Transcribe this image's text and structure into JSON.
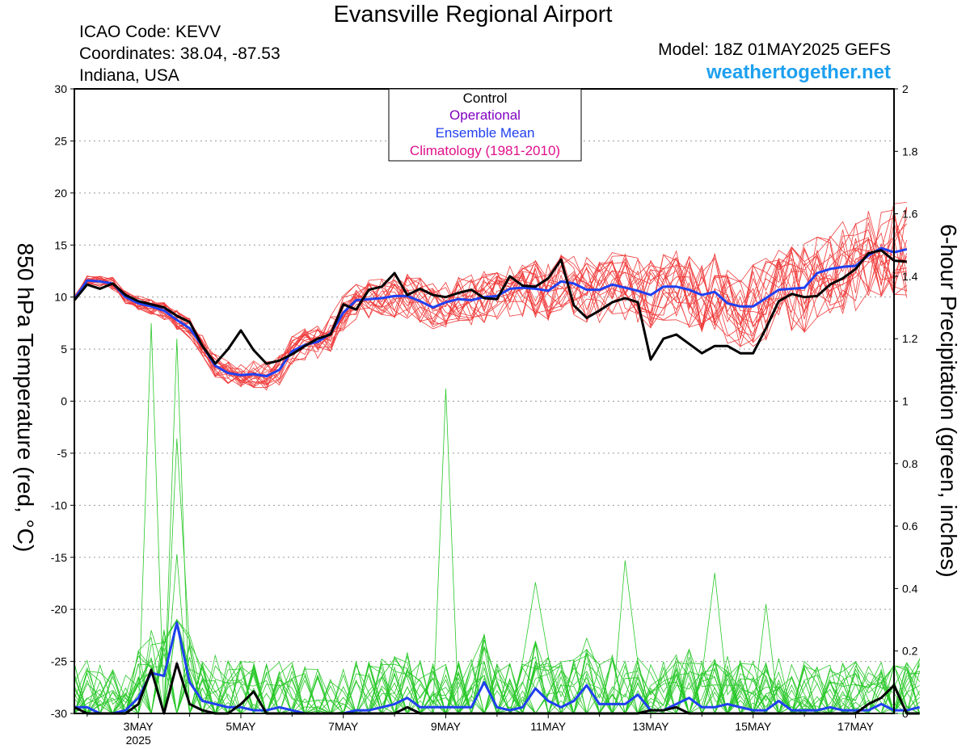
{
  "header": {
    "title": "Evansville Regional Airport",
    "icao": "ICAO Code: KEVV",
    "coords": "Coordinates: 38.04, -87.53",
    "region": "Indiana, USA",
    "model": "Model: 18Z 01MAY2025 GEFS",
    "site": "weathertogether.net"
  },
  "colors": {
    "control": "#000000",
    "operational": "#8000c0",
    "ensemble_mean": "#2040f0",
    "climatology": "#e0108a",
    "members_temp": "#f03c3c",
    "members_precip": "#28c828",
    "site": "#1ea0ef"
  },
  "chart_data": {
    "type": "line",
    "title": "Evansville Regional Airport",
    "ylabel": "850 hPa Temperature (red, °C)",
    "y2label": "6-hour Precipitation (green, inches)",
    "ylim": [
      -30,
      30
    ],
    "y2lim": [
      0,
      2
    ],
    "yticks": [
      30,
      25,
      20,
      15,
      10,
      5,
      0,
      -5,
      -10,
      -15,
      -20,
      -25,
      -30
    ],
    "y2ticks": [
      2,
      1.8,
      1.6,
      1.4,
      1.2,
      1,
      0.8,
      0.6,
      0.4,
      0.2,
      0
    ],
    "xlim": [
      1.75,
      17.75
    ],
    "xticks": [
      {
        "day": 3,
        "label": "3MAY",
        "sub": "2025"
      },
      {
        "day": 5,
        "label": "5MAY",
        "sub": ""
      },
      {
        "day": 7,
        "label": "7MAY",
        "sub": ""
      },
      {
        "day": 9,
        "label": "9MAY",
        "sub": ""
      },
      {
        "day": 11,
        "label": "11MAY",
        "sub": ""
      },
      {
        "day": 13,
        "label": "13MAY",
        "sub": ""
      },
      {
        "day": 15,
        "label": "15MAY",
        "sub": ""
      },
      {
        "day": 17,
        "label": "17MAY",
        "sub": ""
      }
    ],
    "grid": "dotted horizontal",
    "legend_position": "top-center",
    "legend": [
      {
        "label": "Control",
        "key": "control"
      },
      {
        "label": "Operational",
        "key": "operational"
      },
      {
        "label": "Ensemble Mean",
        "key": "ensemble_mean"
      },
      {
        "label": "Climatology (1981-2010)",
        "key": "climatology"
      }
    ],
    "x_start_day": 1.75,
    "x_step_days": 0.25,
    "temp_control": [
      9.7,
      11.2,
      10.8,
      11.3,
      10.2,
      9.6,
      9.3,
      9.0,
      8.2,
      7.6,
      5.3,
      3.6,
      5.0,
      6.8,
      4.9,
      3.6,
      3.9,
      4.5,
      5.3,
      6.0,
      6.4,
      9.3,
      8.8,
      10.7,
      11.0,
      12.3,
      10.2,
      10.8,
      10.2,
      10.0,
      10.4,
      10.7,
      9.9,
      9.8,
      12.0,
      11.1,
      11.0,
      11.8,
      13.6,
      9.2,
      8.0,
      8.7,
      9.5,
      9.9,
      9.5,
      4.0,
      6.0,
      6.4,
      5.5,
      4.6,
      5.3,
      5.3,
      4.6,
      4.6,
      7.0,
      9.6,
      10.3,
      10.0,
      10.1,
      11.2,
      11.8,
      12.7,
      14.2,
      14.5,
      13.5,
      13.4
    ],
    "temp_mean": [
      9.8,
      11.6,
      11.5,
      11.3,
      10.0,
      9.4,
      9.1,
      8.7,
      7.8,
      7.0,
      5.3,
      3.4,
      2.7,
      2.5,
      2.6,
      2.4,
      3.0,
      4.8,
      5.4,
      5.7,
      6.5,
      8.5,
      9.7,
      9.8,
      9.9,
      10.1,
      10.1,
      9.6,
      9.0,
      9.5,
      9.8,
      9.7,
      10.0,
      10.1,
      10.8,
      10.9,
      10.8,
      10.6,
      11.5,
      11.3,
      10.7,
      10.7,
      11.2,
      10.9,
      10.6,
      10.2,
      11.0,
      11.0,
      10.7,
      10.2,
      10.5,
      9.4,
      9.1,
      9.1,
      9.9,
      10.7,
      10.8,
      10.9,
      12.3,
      12.7,
      12.9,
      13.0,
      14.0,
      14.7,
      14.3,
      14.6
    ],
    "precip_control": [
      0.02,
      0,
      0,
      0,
      0,
      0.03,
      0.14,
      0,
      0.16,
      0.03,
      0.01,
      0,
      0,
      0.03,
      0.07,
      0,
      0,
      0,
      0,
      0,
      0,
      0,
      0,
      0,
      0,
      0,
      0.02,
      0,
      0,
      0,
      0,
      0,
      0,
      0,
      0,
      0,
      0,
      0,
      0,
      0,
      0,
      0,
      0,
      0,
      0,
      0.01,
      0.01,
      0.02,
      0,
      0,
      0,
      0,
      0,
      0,
      0,
      0,
      0,
      0,
      0,
      0,
      0,
      0,
      0.03,
      0.05,
      0.09,
      0,
      0
    ],
    "precip_mean": [
      0.02,
      0.02,
      0,
      0,
      0.01,
      0.05,
      0.13,
      0.12,
      0.29,
      0.1,
      0.04,
      0.03,
      0.02,
      0.02,
      0.01,
      0.01,
      0.02,
      0.01,
      0,
      0,
      0,
      0,
      0.01,
      0.01,
      0.02,
      0.03,
      0.05,
      0.02,
      0.02,
      0.02,
      0.02,
      0.02,
      0.1,
      0.02,
      0.01,
      0.02,
      0.08,
      0.04,
      0.02,
      0.04,
      0.09,
      0.03,
      0.03,
      0.03,
      0.06,
      0.01,
      0.01,
      0.03,
      0.05,
      0.02,
      0.02,
      0.03,
      0.02,
      0.01,
      0.01,
      0.04,
      0.01,
      0.01,
      0.01,
      0.02,
      0.01,
      0.01,
      0.01,
      0.03,
      0.01,
      0.01,
      0.02
    ],
    "temp_member_count": 20,
    "precip_member_count": 25,
    "precip_spikes": [
      {
        "day": 3.25,
        "value": 1.25
      },
      {
        "day": 3.75,
        "value": 1.2
      },
      {
        "day": 3.75,
        "value": 0.88
      },
      {
        "day": 3.75,
        "value": 0.51
      },
      {
        "day": 9.0,
        "value": 1.04
      },
      {
        "day": 10.75,
        "value": 0.42
      },
      {
        "day": 12.5,
        "value": 0.49
      },
      {
        "day": 14.25,
        "value": 0.45
      },
      {
        "day": 15.25,
        "value": 0.35
      }
    ]
  }
}
